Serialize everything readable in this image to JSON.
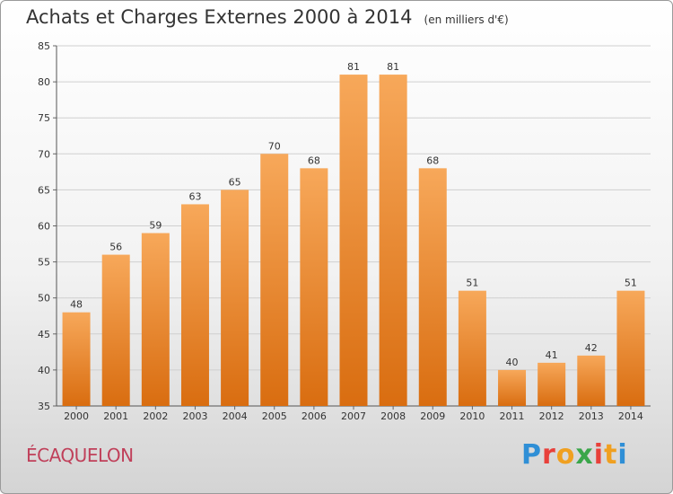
{
  "header": {
    "title": "Achats et Charges Externes 2000 à 2014",
    "unit": "(en milliers d'€)"
  },
  "footer": {
    "place": "ÉCAQUELON",
    "logo_text": "Proxiti",
    "logo_colors": [
      "#2f8fd6",
      "#e8403a",
      "#f0a020",
      "#3aa64a",
      "#e8403a",
      "#f0a020",
      "#2f8fd6"
    ]
  },
  "chart_data": {
    "type": "bar",
    "categories": [
      "2000",
      "2001",
      "2002",
      "2003",
      "2004",
      "2005",
      "2006",
      "2007",
      "2008",
      "2009",
      "2010",
      "2011",
      "2012",
      "2013",
      "2014"
    ],
    "values": [
      48,
      56,
      59,
      63,
      65,
      70,
      68,
      81,
      81,
      68,
      51,
      40,
      41,
      42,
      51
    ],
    "ylim": [
      35,
      85
    ],
    "yticks": [
      35,
      40,
      45,
      50,
      55,
      60,
      65,
      70,
      75,
      80,
      85
    ],
    "grid": true,
    "bar_color": "#f28a2e"
  }
}
